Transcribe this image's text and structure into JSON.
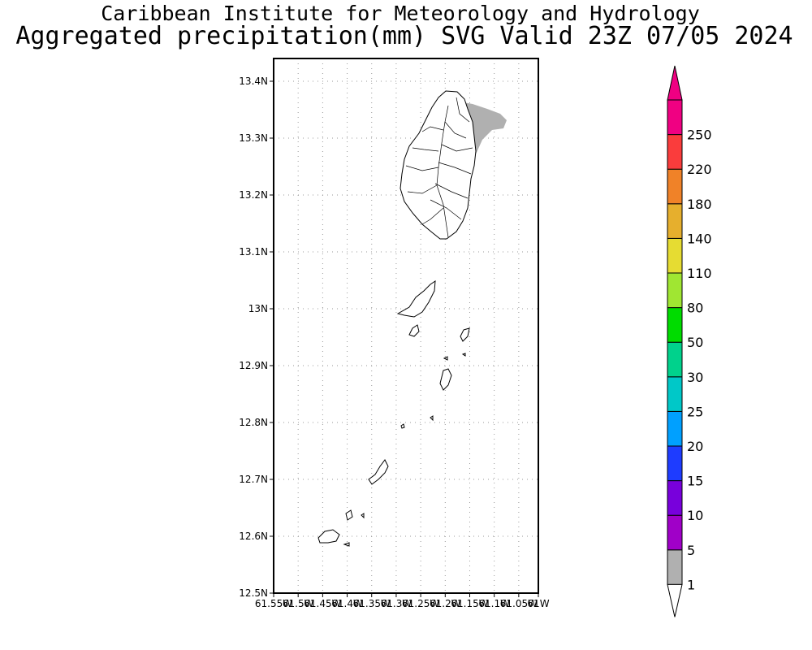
{
  "header": {
    "title": "Caribbean Institute for Meteorology and Hydrology",
    "subtitle": "Aggregated precipitation(mm) SVG Valid 23Z 07/05 2024"
  },
  "map": {
    "lon_range": [
      -61.55,
      -61.01
    ],
    "lat_range": [
      12.5,
      13.44
    ],
    "lat_ticks": [
      {
        "value": 13.4,
        "label": "13.4N"
      },
      {
        "value": 13.3,
        "label": "13.3N"
      },
      {
        "value": 13.2,
        "label": "13.2N"
      },
      {
        "value": 13.1,
        "label": "13.1N"
      },
      {
        "value": 13.0,
        "label": "13N"
      },
      {
        "value": 12.9,
        "label": "12.9N"
      },
      {
        "value": 12.8,
        "label": "12.8N"
      },
      {
        "value": 12.7,
        "label": "12.7N"
      },
      {
        "value": 12.6,
        "label": "12.6N"
      },
      {
        "value": 12.5,
        "label": "12.5N"
      }
    ],
    "lon_ticks": [
      {
        "value": -61.55,
        "label": "61.55W"
      },
      {
        "value": -61.5,
        "label": "61.5W"
      },
      {
        "value": -61.45,
        "label": "61.45W"
      },
      {
        "value": -61.4,
        "label": "61.4W"
      },
      {
        "value": -61.35,
        "label": "61.35W"
      },
      {
        "value": -61.3,
        "label": "61.3W"
      },
      {
        "value": -61.25,
        "label": "61.25W"
      },
      {
        "value": -61.2,
        "label": "61.2W"
      },
      {
        "value": -61.15,
        "label": "61.15W"
      },
      {
        "value": -61.1,
        "label": "61.1W"
      },
      {
        "value": -61.05,
        "label": "61.05W"
      },
      {
        "value": -61.01,
        "label": "61W"
      }
    ],
    "precip_shaded_color": "#b0b0b0",
    "precip_shaded_class": "1-5 mm"
  },
  "colorbar": {
    "labels": [
      "1",
      "5",
      "10",
      "15",
      "20",
      "25",
      "30",
      "50",
      "80",
      "110",
      "140",
      "180",
      "220",
      "250"
    ],
    "colors": [
      "#b0b0b0",
      "#a000c8",
      "#7800dc",
      "#1e3cff",
      "#00a0ff",
      "#00c8c8",
      "#00d28c",
      "#00dc00",
      "#a0e632",
      "#e6dc32",
      "#e6af2d",
      "#f08228",
      "#fa3c3c",
      "#f00082"
    ],
    "top_color": "#f00082",
    "bottom_color": "#ffffff"
  }
}
